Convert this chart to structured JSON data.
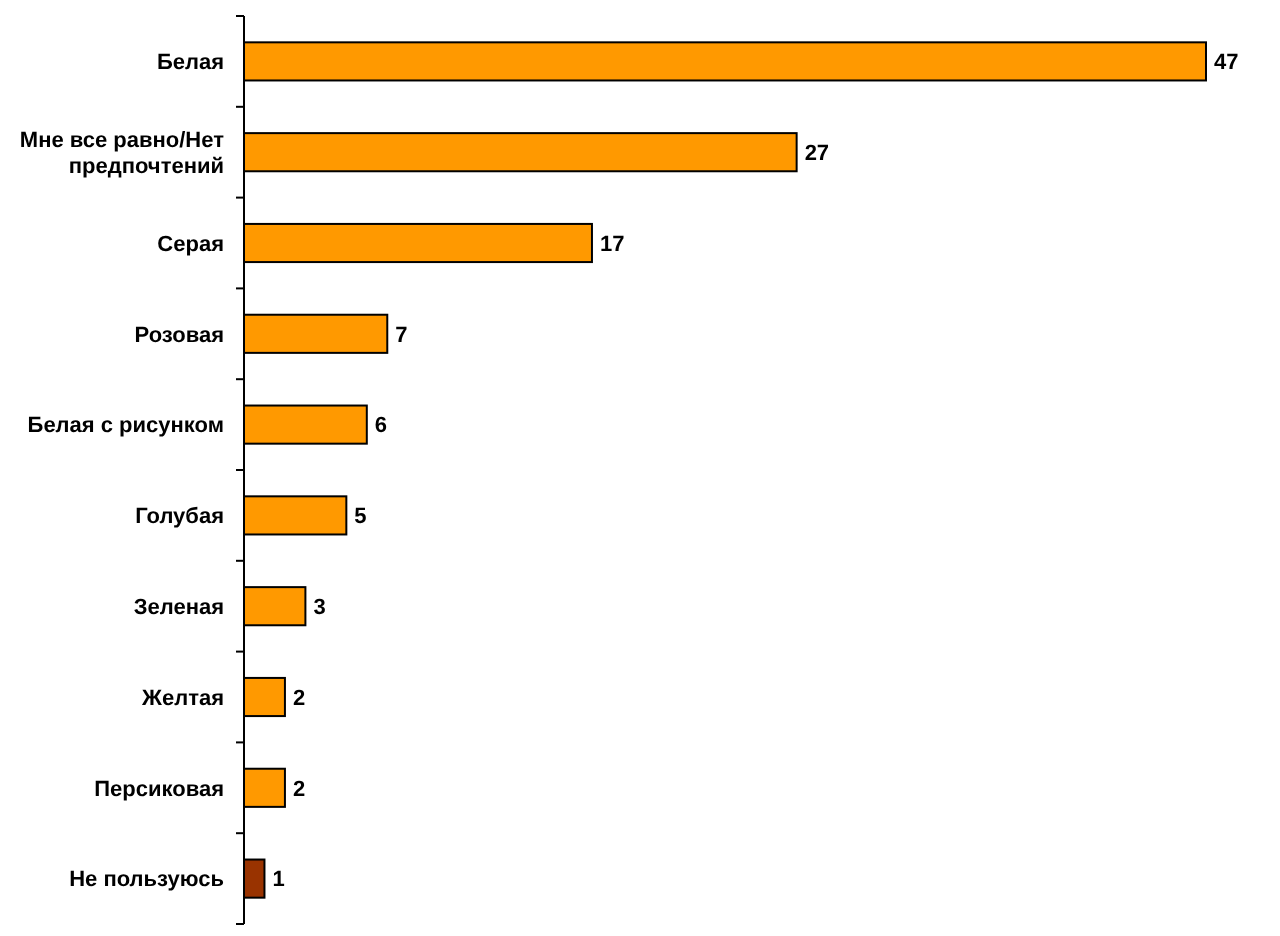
{
  "chart_data": {
    "type": "bar",
    "orientation": "horizontal",
    "data_labels": true,
    "categories": [
      "Белая",
      "Мне все равно/Нет предпочтений",
      "Серая",
      "Розовая",
      "Белая с рисунком",
      "Голубая",
      "Зеленая",
      "Желтая",
      "Персиковая",
      "Не пользуюсь"
    ],
    "values": [
      47,
      27,
      17,
      7,
      6,
      5,
      3,
      2,
      2,
      1
    ],
    "colors": [
      "#ff9900",
      "#ff9900",
      "#ff9900",
      "#ff9900",
      "#ff9900",
      "#ff9900",
      "#ff9900",
      "#ff9900",
      "#ff9900",
      "#993300"
    ]
  }
}
